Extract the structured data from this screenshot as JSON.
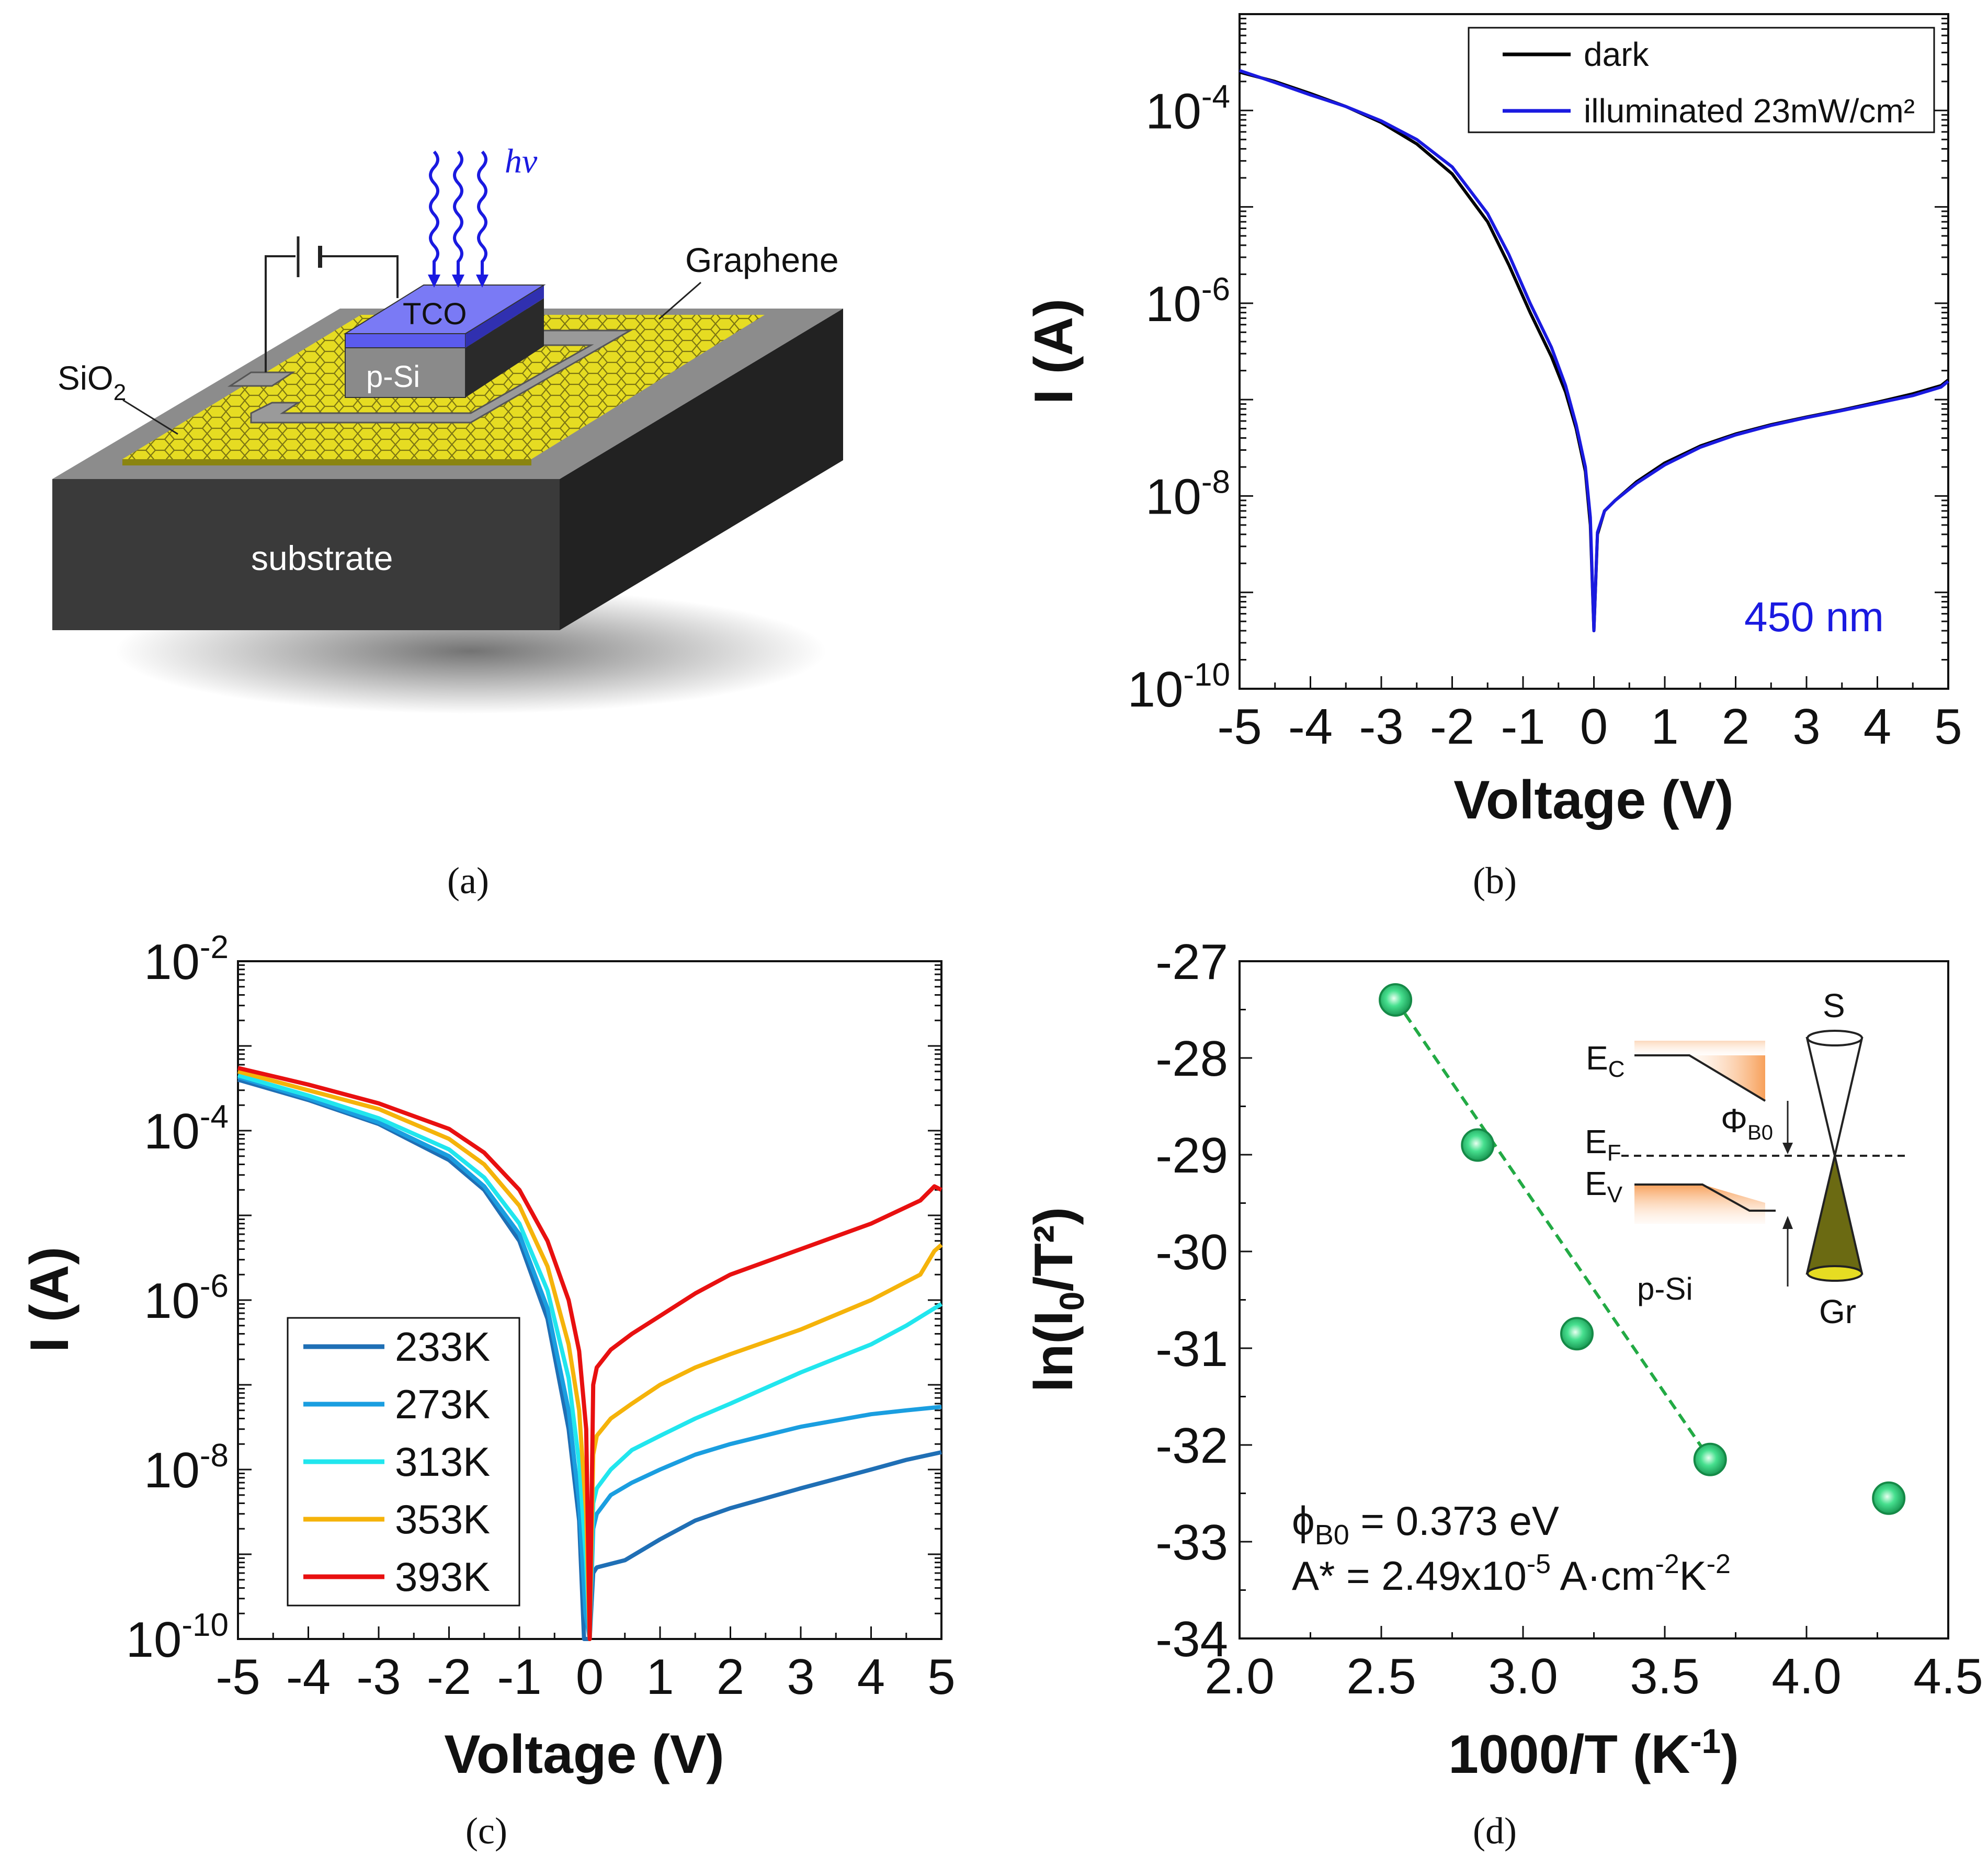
{
  "panel_a": {
    "caption": "(a)",
    "labels": {
      "hv": "hν",
      "graphene": "Graphene",
      "tco": "TCO",
      "psi": "p-Si",
      "sio2_main": "SiO",
      "sio2_sub": "2",
      "substrate": "substrate"
    },
    "colors": {
      "tco": "#6666ee",
      "gold": "#e2dc1a",
      "substrate": "#3a3a3a",
      "photon": "#1a1ae0"
    }
  },
  "chart_data": [
    {
      "id": "b",
      "type": "line",
      "caption": "(b)",
      "xlabel": "Voltage (V)",
      "ylabel": "I (A)",
      "yscale": "log",
      "xlim": [
        -5,
        5
      ],
      "ylim": [
        1e-10,
        0.001
      ],
      "xticks": [
        "-5",
        "-4",
        "-3",
        "-2",
        "-1",
        "0",
        "1",
        "2",
        "3",
        "4",
        "5"
      ],
      "yticks": [
        {
          "base": "10",
          "exp": "-4",
          "value": 0.0001
        },
        {
          "base": "10",
          "exp": "-6",
          "value": 1e-06
        },
        {
          "base": "10",
          "exp": "-8",
          "value": 1e-08
        },
        {
          "base": "10",
          "exp": "-10",
          "value": 1e-10
        }
      ],
      "annotation": "450 nm",
      "annotation_color": "#1a1ae0",
      "legend_position": "top-right",
      "series": [
        {
          "name": "dark",
          "color": "#000000",
          "x": [
            -5,
            -4.5,
            -4,
            -3.5,
            -3,
            -2.5,
            -2,
            -1.5,
            -1.2,
            -0.9,
            -0.6,
            -0.4,
            -0.25,
            -0.12,
            -0.05,
            0,
            0.05,
            0.15,
            0.3,
            0.6,
            1,
            1.5,
            2,
            2.5,
            3,
            3.5,
            4,
            4.5,
            4.9,
            5
          ],
          "y": [
            0.00025,
            0.0002,
            0.00015,
            0.00011,
            7.5e-05,
            4.5e-05,
            2.2e-05,
            7e-06,
            2.5e-06,
            8e-07,
            2.8e-07,
            1.2e-07,
            5e-08,
            1.8e-08,
            5e-09,
            4e-10,
            4e-09,
            7e-09,
            9e-09,
            1.4e-08,
            2.2e-08,
            3.3e-08,
            4.4e-08,
            5.5e-08,
            6.6e-08,
            7.8e-08,
            9.4e-08,
            1.15e-07,
            1.4e-07,
            1.6e-07
          ]
        },
        {
          "name": "illuminated 23mW/cm²",
          "color": "#1a1ae0",
          "x": [
            -5,
            -4.5,
            -4,
            -3.5,
            -3,
            -2.5,
            -2,
            -1.5,
            -1.2,
            -0.9,
            -0.6,
            -0.4,
            -0.25,
            -0.12,
            -0.05,
            0,
            0.05,
            0.15,
            0.3,
            0.6,
            1,
            1.5,
            2,
            2.5,
            3,
            3.5,
            4,
            4.5,
            4.9,
            5
          ],
          "y": [
            0.00026,
            0.000195,
            0.000145,
            0.00011,
            7.8e-05,
            5e-05,
            2.6e-05,
            8.5e-06,
            3.2e-06,
            1e-06,
            3.5e-07,
            1.4e-07,
            5.5e-08,
            2e-08,
            6e-09,
            4e-10,
            4.2e-09,
            7e-09,
            9e-09,
            1.35e-08,
            2.1e-08,
            3.2e-08,
            4.3e-08,
            5.4e-08,
            6.5e-08,
            7.7e-08,
            9.2e-08,
            1.1e-07,
            1.35e-07,
            1.55e-07
          ]
        }
      ]
    },
    {
      "id": "c",
      "type": "line",
      "caption": "(c)",
      "xlabel": "Voltage (V)",
      "ylabel": "I (A)",
      "yscale": "log",
      "xlim": [
        -5,
        5
      ],
      "ylim": [
        1e-10,
        0.01
      ],
      "xticks": [
        "-5",
        "-4",
        "-3",
        "-2",
        "-1",
        "0",
        "1",
        "2",
        "3",
        "4",
        "5"
      ],
      "yticks": [
        {
          "base": "10",
          "exp": "-2",
          "value": 0.01
        },
        {
          "base": "10",
          "exp": "-4",
          "value": 0.0001
        },
        {
          "base": "10",
          "exp": "-6",
          "value": 1e-06
        },
        {
          "base": "10",
          "exp": "-8",
          "value": 1e-08
        },
        {
          "base": "10",
          "exp": "-10",
          "value": 1e-10
        }
      ],
      "legend_position": "bottom-left",
      "series": [
        {
          "name": "233K",
          "color": "#1f6fb5",
          "x": [
            -5,
            -4,
            -3,
            -2,
            -1.5,
            -1,
            -0.6,
            -0.3,
            -0.15,
            -0.08,
            0,
            0.05,
            0.1,
            0.5,
            1,
            1.5,
            2,
            3,
            4,
            4.5,
            5
          ],
          "y": [
            0.0004,
            0.00023,
            0.00012,
            4.5e-05,
            2e-05,
            5e-06,
            6e-07,
            3e-08,
            2.5e-09,
            1e-10,
            1e-10,
            6e-10,
            7e-10,
            8.5e-10,
            1.5e-09,
            2.5e-09,
            3.5e-09,
            6e-09,
            1e-08,
            1.3e-08,
            1.6e-08
          ]
        },
        {
          "name": "273K",
          "color": "#1a9ee0",
          "x": [
            -5,
            -4,
            -3,
            -2,
            -1.5,
            -1,
            -0.6,
            -0.3,
            -0.15,
            -0.06,
            0,
            0.05,
            0.1,
            0.3,
            0.6,
            1,
            1.5,
            2,
            3,
            4,
            4.5,
            5
          ],
          "y": [
            0.00043,
            0.00024,
            0.000125,
            5e-05,
            2.2e-05,
            6e-06,
            8e-07,
            5e-08,
            4e-09,
            2e-10,
            1e-10,
            2e-09,
            3e-09,
            5e-09,
            7e-09,
            1e-08,
            1.5e-08,
            2e-08,
            3.2e-08,
            4.5e-08,
            5e-08,
            5.5e-08
          ]
        },
        {
          "name": "313K",
          "color": "#21e6ee",
          "x": [
            -5,
            -4,
            -3,
            -2,
            -1.5,
            -1,
            -0.6,
            -0.3,
            -0.15,
            -0.05,
            0,
            0.05,
            0.1,
            0.3,
            0.6,
            1,
            1.5,
            2,
            3,
            4,
            4.5,
            5
          ],
          "y": [
            0.00045,
            0.00026,
            0.00014,
            6e-05,
            2.8e-05,
            8e-06,
            1.3e-06,
            1.2e-07,
            1.2e-08,
            8e-10,
            1e-10,
            4e-09,
            6e-09,
            1e-08,
            1.7e-08,
            2.5e-08,
            4e-08,
            6e-08,
            1.4e-07,
            3e-07,
            5e-07,
            9e-07
          ]
        },
        {
          "name": "353K",
          "color": "#f5b30a",
          "x": [
            -5,
            -4,
            -3,
            -2,
            -1.5,
            -1,
            -0.6,
            -0.3,
            -0.15,
            -0.05,
            0,
            0.05,
            0.1,
            0.3,
            0.6,
            1,
            1.5,
            2,
            3,
            4,
            4.7,
            4.9,
            5
          ],
          "y": [
            0.0005,
            0.0003,
            0.00018,
            8e-05,
            4e-05,
            1.3e-05,
            2.5e-06,
            3e-07,
            5e-08,
            3e-09,
            1e-10,
            1.5e-08,
            2.5e-08,
            4e-08,
            6e-08,
            1e-07,
            1.6e-07,
            2.3e-07,
            4.5e-07,
            1e-06,
            2e-06,
            3.8e-06,
            4.5e-06
          ]
        },
        {
          "name": "393K",
          "color": "#e81010",
          "x": [
            -5,
            -4,
            -3,
            -2,
            -1.5,
            -1,
            -0.6,
            -0.3,
            -0.15,
            -0.05,
            0,
            0.05,
            0.1,
            0.3,
            0.6,
            1,
            1.5,
            2,
            3,
            4,
            4.7,
            4.9,
            5
          ],
          "y": [
            0.00055,
            0.00035,
            0.00021,
            0.000105,
            5.5e-05,
            2e-05,
            5e-06,
            1e-06,
            2.5e-07,
            3e-08,
            1e-10,
            1e-07,
            1.6e-07,
            2.6e-07,
            4e-07,
            6.5e-07,
            1.2e-06,
            2e-06,
            4e-06,
            8e-06,
            1.5e-05,
            2.2e-05,
            2e-05
          ]
        }
      ]
    },
    {
      "id": "d",
      "type": "scatter",
      "caption": "(d)",
      "xlabel_main": "1000/T (K",
      "xlabel_sup": "-1",
      "xlabel_close": ")",
      "ylabel_main": "ln(I",
      "ylabel_sub": "0",
      "ylabel_close": "/T²)",
      "xlim": [
        2.0,
        4.5
      ],
      "ylim": [
        -34,
        -27
      ],
      "xticks": [
        "2.0",
        "2.5",
        "3.0",
        "3.5",
        "4.0",
        "4.5"
      ],
      "yticks": [
        "-27",
        "-28",
        "-29",
        "-30",
        "-31",
        "-32",
        "-33",
        "-34"
      ],
      "points": {
        "x": [
          2.55,
          2.84,
          3.19,
          3.66,
          4.29
        ],
        "y": [
          -27.4,
          -28.9,
          -30.85,
          -32.15,
          -32.55
        ]
      },
      "fit": {
        "x": [
          2.55,
          3.66
        ],
        "y": [
          -27.4,
          -32.15
        ],
        "color": "#22aa44"
      },
      "marker_color": "#2fd07a",
      "annotations": {
        "phi_sym": "ϕ",
        "phi_sub": "B0",
        "phi_value": " = 0.373 eV",
        "astar_pre": "A* = 2.49x10",
        "astar_exp1": "-5",
        "astar_mid": " A·cm",
        "astar_exp2": "-2",
        "astar_k": "K",
        "astar_exp3": "-2"
      },
      "inset": {
        "ec": "E",
        "ec_sub": "C",
        "ef": "E",
        "ef_sub": "F",
        "ev": "E",
        "ev_sub": "V",
        "phi": "Φ",
        "phi_sub": "B0",
        "s": "S",
        "gr": "Gr",
        "psi": "p-Si"
      }
    }
  ]
}
